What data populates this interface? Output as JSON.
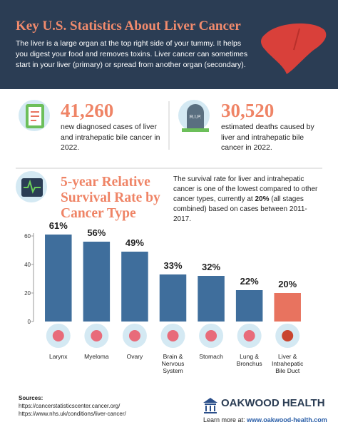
{
  "header": {
    "title": "Key U.S. Statistics About Liver Cancer",
    "description": "The liver is a large organ at the top right side of your tummy. It helps you digest your food and removes toxins. Liver cancer can sometimes start in your liver (primary) or spread from another organ (secondary)."
  },
  "stats": [
    {
      "value": "41,260",
      "text": "new diagnosed cases of liver and intrahepatic bile cancer in 2022."
    },
    {
      "value": "30,520",
      "text": "estimated deaths caused by liver and intrahepatic bile cancer in 2022.",
      "icon_text": "R.I.P."
    }
  ],
  "chart_data": {
    "type": "bar",
    "title": "5-year Relative Survival Rate by Cancer Type",
    "description": {
      "before": "The survival rate for liver and intrahepatic cancer is one of the lowest compared to other cancer types, currently at ",
      "bold": "20%",
      "after": " (all stages combined) based on cases between 2011-2017."
    },
    "categories": [
      "Larynx",
      "Myeloma",
      "Ovary",
      "Brain & Nervous System",
      "Stomach",
      "Lung & Bronchus",
      "Liver & Intrahepatic Bile Duct"
    ],
    "values": [
      61,
      56,
      49,
      33,
      32,
      22,
      20
    ],
    "value_labels": [
      "61%",
      "56%",
      "49%",
      "33%",
      "32%",
      "22%",
      "20%"
    ],
    "colors": [
      "#3f6e9c",
      "#3f6e9c",
      "#3f6e9c",
      "#3f6e9c",
      "#3f6e9c",
      "#3f6e9c",
      "#e8735f"
    ],
    "ylim": [
      0,
      65
    ],
    "yticks": [
      0,
      20,
      40,
      60
    ]
  },
  "footer": {
    "sources_label": "Sources:",
    "sources": [
      "https://cancerstatisticscenter.cancer.org/",
      "https://www.nhs.uk/conditions/liver-cancer/"
    ],
    "brand": "OAKWOOD HEALTH",
    "learn_more": "Learn more at:",
    "link": "www.oakwood-health.com"
  }
}
